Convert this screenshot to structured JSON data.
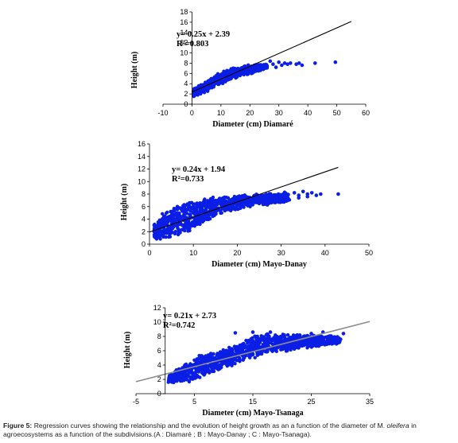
{
  "chart_data": [
    {
      "type": "scatter",
      "panel": "A",
      "title": "",
      "xlabel": "Diameter (cm) Diamaré",
      "ylabel": "Height (m)",
      "xlim": [
        -10,
        60
      ],
      "ylim": [
        0,
        18
      ],
      "xticks": [
        -10,
        0,
        10,
        20,
        30,
        40,
        50,
        60
      ],
      "yticks": [
        0,
        2,
        4,
        6,
        8,
        10,
        12,
        14,
        16,
        18
      ],
      "trendline": {
        "slope": 0.25,
        "intercept": 2.39,
        "x_range": [
          0,
          55
        ]
      },
      "equation": "y= 0.25x + 2.39",
      "r_squared": "R²=0.803",
      "cloud": [
        {
          "x": 0.5,
          "lo": 1.5,
          "hi": 3.0
        },
        {
          "x": 3,
          "lo": 1.6,
          "hi": 4.0
        },
        {
          "x": 6,
          "lo": 2.5,
          "hi": 5.0
        },
        {
          "x": 9,
          "lo": 3.5,
          "hi": 6.0
        },
        {
          "x": 12,
          "lo": 4.2,
          "hi": 6.8
        },
        {
          "x": 15,
          "lo": 5.0,
          "hi": 7.2
        },
        {
          "x": 18,
          "lo": 5.5,
          "hi": 7.6
        },
        {
          "x": 21,
          "lo": 6.0,
          "hi": 7.8
        },
        {
          "x": 24,
          "lo": 6.5,
          "hi": 7.8
        },
        {
          "x": 26,
          "lo": 7.0,
          "hi": 7.8
        }
      ],
      "points": [
        [
          28,
          7.8
        ],
        [
          30,
          8.2
        ],
        [
          31,
          7.6
        ],
        [
          32,
          8.0
        ],
        [
          33,
          7.8
        ],
        [
          34,
          8.0
        ],
        [
          36,
          7.8
        ],
        [
          37,
          8.0
        ],
        [
          38,
          7.6
        ],
        [
          42.5,
          8.0
        ],
        [
          49.5,
          8.2
        ],
        [
          29,
          7.2
        ],
        [
          27,
          8.4
        ]
      ]
    },
    {
      "type": "scatter",
      "panel": "B",
      "title": "",
      "xlabel": "Diameter (cm) Mayo-Danay",
      "ylabel": "Height (m)",
      "xlim": [
        0,
        50
      ],
      "ylim": [
        0,
        16
      ],
      "xticks": [
        0,
        10,
        20,
        30,
        40,
        50
      ],
      "yticks": [
        0,
        2,
        4,
        6,
        8,
        10,
        12,
        14,
        16
      ],
      "trendline": {
        "slope": 0.24,
        "intercept": 1.94,
        "x_range": [
          0,
          43
        ]
      },
      "equation": "y= 0.24x + 1.94",
      "r_squared": "R²=0.733",
      "cloud": [
        {
          "x": 1,
          "lo": 0.5,
          "hi": 3.5
        },
        {
          "x": 3,
          "lo": 0.8,
          "hi": 5.0
        },
        {
          "x": 5,
          "lo": 1.0,
          "hi": 6.0
        },
        {
          "x": 7,
          "lo": 1.5,
          "hi": 6.5
        },
        {
          "x": 9,
          "lo": 2.0,
          "hi": 7.0
        },
        {
          "x": 11,
          "lo": 2.5,
          "hi": 7.2
        },
        {
          "x": 13,
          "lo": 3.5,
          "hi": 7.5
        },
        {
          "x": 15,
          "lo": 4.5,
          "hi": 7.6
        },
        {
          "x": 18,
          "lo": 5.0,
          "hi": 7.6
        },
        {
          "x": 21,
          "lo": 5.5,
          "hi": 8.0
        },
        {
          "x": 24,
          "lo": 6.0,
          "hi": 8.0
        },
        {
          "x": 27,
          "lo": 6.2,
          "hi": 8.2
        },
        {
          "x": 30,
          "lo": 6.5,
          "hi": 8.4
        },
        {
          "x": 32,
          "lo": 7.0,
          "hi": 8.4
        }
      ],
      "points": [
        [
          33,
          8.2
        ],
        [
          34,
          7.8
        ],
        [
          35,
          8.4
        ],
        [
          36,
          8.0
        ],
        [
          37,
          8.2
        ],
        [
          38,
          7.8
        ],
        [
          39,
          8.0
        ],
        [
          43,
          8.0
        ],
        [
          34,
          7.4
        ],
        [
          36,
          7.6
        ]
      ]
    },
    {
      "type": "scatter",
      "panel": "C",
      "title": "",
      "xlabel": "Diameter (cm) Mayo-Tsanaga",
      "ylabel": "Height (m)",
      "xlim": [
        -5,
        35
      ],
      "ylim": [
        0,
        12
      ],
      "xticks": [
        -5,
        5,
        15,
        25,
        35
      ],
      "yticks": [
        0,
        2,
        4,
        6,
        8,
        10,
        12
      ],
      "trendline": {
        "slope": 0.21,
        "intercept": 2.73,
        "x_range": [
          -5,
          35
        ]
      },
      "equation": "y= 0.21x + 2.73",
      "r_squared": "R²=0.742",
      "cloud": [
        {
          "x": 0.5,
          "lo": 1.4,
          "hi": 2.5
        },
        {
          "x": 2,
          "lo": 1.5,
          "hi": 3.5
        },
        {
          "x": 4,
          "lo": 1.6,
          "hi": 4.5
        },
        {
          "x": 6,
          "lo": 2.0,
          "hi": 5.5
        },
        {
          "x": 8,
          "lo": 2.8,
          "hi": 6.0
        },
        {
          "x": 10,
          "lo": 3.5,
          "hi": 6.5
        },
        {
          "x": 12,
          "lo": 4.0,
          "hi": 7.0
        },
        {
          "x": 14,
          "lo": 4.5,
          "hi": 7.8
        },
        {
          "x": 16,
          "lo": 5.0,
          "hi": 8.5
        },
        {
          "x": 18,
          "lo": 5.5,
          "hi": 8.5
        },
        {
          "x": 20,
          "lo": 5.8,
          "hi": 8.5
        },
        {
          "x": 22,
          "lo": 6.0,
          "hi": 8.3
        },
        {
          "x": 24,
          "lo": 6.3,
          "hi": 8.3
        },
        {
          "x": 26,
          "lo": 6.5,
          "hi": 8.2
        },
        {
          "x": 28,
          "lo": 6.8,
          "hi": 8.2
        },
        {
          "x": 30,
          "lo": 7.0,
          "hi": 8.0
        }
      ],
      "points": [
        [
          12,
          8.5
        ],
        [
          15,
          8.6
        ],
        [
          18,
          8.6
        ],
        [
          21,
          8.2
        ],
        [
          25,
          8.4
        ],
        [
          28,
          8.0
        ],
        [
          30,
          7.6
        ],
        [
          30.5,
          8.4
        ],
        [
          29,
          7.4
        ],
        [
          27,
          8.6
        ]
      ]
    }
  ],
  "colors": {
    "points": "#0a1ee6",
    "trendline": "#000000",
    "trendline_c": "#8c8c8c",
    "axis": "#000000"
  },
  "caption": {
    "label": "Figure 5:",
    "text_before_species": "Regression curves showing the relationship and the evolution of height growth as an a function of the diameter of M.",
    "species": "oleifera",
    "text_after_species": "in agroecosystems as a function of the subdivisions.(A : Diamaré ; B : Mayo-Danay ; C : Mayo-Tsanaga)."
  }
}
